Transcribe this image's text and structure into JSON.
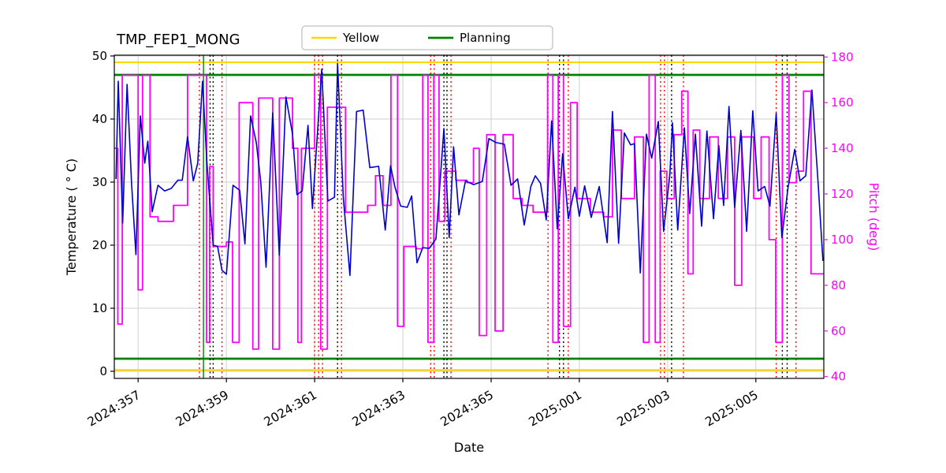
{
  "title": "TMP_FEP1_MONG",
  "legend": {
    "items": [
      {
        "label": "Yellow",
        "color": "#FFD700"
      },
      {
        "label": "Planning",
        "color": "#008000"
      }
    ]
  },
  "chart_data": {
    "type": "line",
    "title": "TMP_FEP1_MONG",
    "xlabel": "Date",
    "ylabel_left": "Temperature ( ° C)",
    "ylabel_right": "Pitch (deg)",
    "x_range": [
      356.46,
      372.54
    ],
    "ylim_left": [
      -1.13,
      50.13
    ],
    "ylim_right": [
      39.2,
      180.8
    ],
    "grid": true,
    "legend_position": "top-center",
    "y_ticks_left": [
      0,
      10,
      20,
      30,
      40,
      50
    ],
    "y_ticks_right": [
      40,
      60,
      80,
      100,
      120,
      140,
      160,
      180
    ],
    "x_ticks": [
      {
        "v": 357,
        "label": "2024:357"
      },
      {
        "v": 359,
        "label": "2024:359"
      },
      {
        "v": 361,
        "label": "2024:361"
      },
      {
        "v": 363,
        "label": "2024:363"
      },
      {
        "v": 365,
        "label": "2024:365"
      },
      {
        "v": 367,
        "label": "2025:001"
      },
      {
        "v": 369,
        "label": "2025:003"
      },
      {
        "v": 371,
        "label": "2025:005"
      }
    ],
    "colors": {
      "temperature": "#0000CC",
      "pitch": "#FF00FF",
      "yellow_limit": "#FFD700",
      "planning_limit": "#008000",
      "event_red": "#FF0000",
      "event_black": "#000000",
      "event_green": "#008000",
      "grid": "#CFCFCF"
    },
    "limit_lines": [
      {
        "name": "yellow-upper-limit",
        "y": 49,
        "color": "#FFD700",
        "width": 2.2
      },
      {
        "name": "yellow-lower-limit",
        "y": 0.2,
        "color": "#FFD700",
        "width": 2.2
      },
      {
        "name": "planning-upper-limit",
        "y": 47,
        "color": "#008000",
        "width": 2.8
      },
      {
        "name": "planning-lower-limit",
        "y": 2,
        "color": "#008000",
        "width": 2.8
      }
    ],
    "event_lines": [
      {
        "x": 358.39,
        "color": "#FF0000",
        "style": "dotted"
      },
      {
        "x": 358.48,
        "color": "#008000",
        "style": "solid"
      },
      {
        "x": 358.63,
        "color": "#000000",
        "style": "dotted"
      },
      {
        "x": 358.7,
        "color": "#000000",
        "style": "dotted"
      },
      {
        "x": 358.9,
        "color": "#FF0000",
        "style": "dotted"
      },
      {
        "x": 361.0,
        "color": "#FF0000",
        "style": "dotted"
      },
      {
        "x": 361.09,
        "color": "#FF0000",
        "style": "dotted"
      },
      {
        "x": 361.18,
        "color": "#FF0000",
        "style": "dotted"
      },
      {
        "x": 361.52,
        "color": "#000000",
        "style": "dotted"
      },
      {
        "x": 361.61,
        "color": "#FF0000",
        "style": "dotted"
      },
      {
        "x": 363.63,
        "color": "#FF0000",
        "style": "dotted"
      },
      {
        "x": 363.71,
        "color": "#FF0000",
        "style": "dotted"
      },
      {
        "x": 363.93,
        "color": "#000000",
        "style": "dotted"
      },
      {
        "x": 364.0,
        "color": "#000000",
        "style": "dotted"
      },
      {
        "x": 364.09,
        "color": "#FF0000",
        "style": "dotted"
      },
      {
        "x": 366.29,
        "color": "#FF0000",
        "style": "dotted"
      },
      {
        "x": 366.55,
        "color": "#000000",
        "style": "dotted"
      },
      {
        "x": 366.64,
        "color": "#000000",
        "style": "dotted"
      },
      {
        "x": 366.75,
        "color": "#FF0000",
        "style": "dotted"
      },
      {
        "x": 368.84,
        "color": "#FF0000",
        "style": "dotted"
      },
      {
        "x": 368.93,
        "color": "#FF0000",
        "style": "dotted"
      },
      {
        "x": 369.09,
        "color": "#000000",
        "style": "dotted"
      },
      {
        "x": 369.36,
        "color": "#FF0000",
        "style": "dotted"
      },
      {
        "x": 371.46,
        "color": "#FF0000",
        "style": "dotted"
      },
      {
        "x": 371.6,
        "color": "#000000",
        "style": "dotted"
      },
      {
        "x": 371.71,
        "color": "#000000",
        "style": "dotted"
      },
      {
        "x": 371.91,
        "color": "#FF0000",
        "style": "dotted"
      }
    ],
    "series": [
      {
        "name": "Pitch",
        "axis": "right",
        "color": "#FF00FF",
        "width": 1.8,
        "step": true,
        "points": [
          [
            356.46,
            140
          ],
          [
            356.54,
            63
          ],
          [
            356.64,
            172
          ],
          [
            357.0,
            78
          ],
          [
            357.1,
            172
          ],
          [
            357.27,
            110
          ],
          [
            357.45,
            108
          ],
          [
            357.8,
            115
          ],
          [
            358.12,
            172
          ],
          [
            358.55,
            55
          ],
          [
            358.62,
            132
          ],
          [
            358.7,
            97
          ],
          [
            359.0,
            99
          ],
          [
            359.14,
            55
          ],
          [
            359.29,
            160
          ],
          [
            359.6,
            52
          ],
          [
            359.73,
            162
          ],
          [
            360.05,
            52
          ],
          [
            360.2,
            162
          ],
          [
            360.5,
            140
          ],
          [
            360.62,
            55
          ],
          [
            360.7,
            140
          ],
          [
            361.0,
            172
          ],
          [
            361.14,
            52
          ],
          [
            361.29,
            158
          ],
          [
            361.7,
            112
          ],
          [
            362.2,
            115
          ],
          [
            362.38,
            128
          ],
          [
            362.55,
            115
          ],
          [
            362.73,
            172
          ],
          [
            362.88,
            62
          ],
          [
            363.02,
            97
          ],
          [
            363.3,
            96
          ],
          [
            363.45,
            172
          ],
          [
            363.57,
            55
          ],
          [
            363.7,
            172
          ],
          [
            363.82,
            108
          ],
          [
            363.95,
            130
          ],
          [
            364.2,
            126
          ],
          [
            364.45,
            125
          ],
          [
            364.6,
            140
          ],
          [
            364.73,
            58
          ],
          [
            364.9,
            146
          ],
          [
            365.09,
            60
          ],
          [
            365.27,
            146
          ],
          [
            365.5,
            118
          ],
          [
            365.7,
            115
          ],
          [
            365.95,
            112
          ],
          [
            366.28,
            172
          ],
          [
            366.4,
            55
          ],
          [
            366.52,
            172
          ],
          [
            366.64,
            62
          ],
          [
            366.8,
            160
          ],
          [
            366.95,
            118
          ],
          [
            367.25,
            112
          ],
          [
            367.55,
            110
          ],
          [
            367.75,
            148
          ],
          [
            367.95,
            118
          ],
          [
            368.25,
            145
          ],
          [
            368.45,
            55
          ],
          [
            368.58,
            172
          ],
          [
            368.72,
            55
          ],
          [
            368.83,
            130
          ],
          [
            368.98,
            118
          ],
          [
            369.15,
            146
          ],
          [
            369.32,
            165
          ],
          [
            369.46,
            85
          ],
          [
            369.58,
            148
          ],
          [
            369.73,
            118
          ],
          [
            369.95,
            145
          ],
          [
            370.15,
            118
          ],
          [
            370.36,
            145
          ],
          [
            370.52,
            80
          ],
          [
            370.68,
            145
          ],
          [
            370.95,
            118
          ],
          [
            371.12,
            145
          ],
          [
            371.3,
            100
          ],
          [
            371.45,
            55
          ],
          [
            371.6,
            172
          ],
          [
            371.75,
            125
          ],
          [
            371.92,
            130
          ],
          [
            372.08,
            165
          ],
          [
            372.25,
            85
          ]
        ]
      },
      {
        "name": "Temperature",
        "axis": "left",
        "color": "#0000CC",
        "width": 1.6,
        "step": false,
        "points": [
          [
            356.5,
            30.5
          ],
          [
            356.55,
            46
          ],
          [
            356.65,
            23.5
          ],
          [
            356.75,
            45.5
          ],
          [
            356.85,
            30
          ],
          [
            356.95,
            18.5
          ],
          [
            357.05,
            40.5
          ],
          [
            357.15,
            33
          ],
          [
            357.22,
            36.5
          ],
          [
            357.32,
            25.3
          ],
          [
            357.45,
            29.5
          ],
          [
            357.6,
            28.6
          ],
          [
            357.75,
            29
          ],
          [
            357.9,
            30.3
          ],
          [
            358.0,
            30.3
          ],
          [
            358.12,
            37.2
          ],
          [
            358.25,
            30.2
          ],
          [
            358.35,
            33
          ],
          [
            358.46,
            46
          ],
          [
            358.56,
            33
          ],
          [
            358.7,
            20
          ],
          [
            358.8,
            19.8
          ],
          [
            358.9,
            16
          ],
          [
            359.0,
            15.4
          ],
          [
            359.15,
            29.5
          ],
          [
            359.3,
            28.7
          ],
          [
            359.42,
            20.2
          ],
          [
            359.55,
            40.5
          ],
          [
            359.68,
            36.2
          ],
          [
            359.78,
            30
          ],
          [
            359.9,
            16.5
          ],
          [
            360.05,
            41
          ],
          [
            360.2,
            18.4
          ],
          [
            360.35,
            43.5
          ],
          [
            360.5,
            37.6
          ],
          [
            360.6,
            28
          ],
          [
            360.72,
            28.6
          ],
          [
            360.85,
            39
          ],
          [
            360.95,
            25.8
          ],
          [
            361.16,
            47.9
          ],
          [
            361.3,
            27
          ],
          [
            361.45,
            27.6
          ],
          [
            361.52,
            48.8
          ],
          [
            361.65,
            27.5
          ],
          [
            361.8,
            15.2
          ],
          [
            361.95,
            41.2
          ],
          [
            362.1,
            41.4
          ],
          [
            362.25,
            32.3
          ],
          [
            362.45,
            32.5
          ],
          [
            362.6,
            22.4
          ],
          [
            362.72,
            32.6
          ],
          [
            362.82,
            29.2
          ],
          [
            362.95,
            26.2
          ],
          [
            363.1,
            26
          ],
          [
            363.2,
            27.8
          ],
          [
            363.32,
            17.2
          ],
          [
            363.45,
            19.6
          ],
          [
            363.6,
            19.5
          ],
          [
            363.75,
            21
          ],
          [
            363.93,
            38.5
          ],
          [
            364.05,
            21.2
          ],
          [
            364.15,
            35.6
          ],
          [
            364.27,
            24.8
          ],
          [
            364.42,
            30.2
          ],
          [
            364.6,
            29.6
          ],
          [
            364.8,
            30.1
          ],
          [
            364.95,
            36.9
          ],
          [
            365.1,
            36.3
          ],
          [
            365.3,
            36
          ],
          [
            365.45,
            29.5
          ],
          [
            365.6,
            30.5
          ],
          [
            365.75,
            23.2
          ],
          [
            365.9,
            29.3
          ],
          [
            366.0,
            31
          ],
          [
            366.12,
            29.8
          ],
          [
            366.25,
            24
          ],
          [
            366.37,
            39.7
          ],
          [
            366.5,
            22.6
          ],
          [
            366.62,
            34.5
          ],
          [
            366.75,
            24.2
          ],
          [
            366.9,
            29.2
          ],
          [
            367.0,
            24.6
          ],
          [
            367.12,
            29.4
          ],
          [
            367.27,
            24.4
          ],
          [
            367.45,
            29.3
          ],
          [
            367.63,
            20.4
          ],
          [
            367.75,
            41.2
          ],
          [
            367.89,
            20.3
          ],
          [
            368.02,
            37.8
          ],
          [
            368.16,
            35.9
          ],
          [
            368.25,
            36.1
          ],
          [
            368.38,
            15.6
          ],
          [
            368.52,
            37.6
          ],
          [
            368.64,
            33.8
          ],
          [
            368.79,
            39.6
          ],
          [
            368.91,
            22.2
          ],
          [
            369.05,
            31.2
          ],
          [
            369.11,
            39.4
          ],
          [
            369.23,
            22.4
          ],
          [
            369.38,
            38.6
          ],
          [
            369.5,
            25
          ],
          [
            369.63,
            37.6
          ],
          [
            369.77,
            23
          ],
          [
            369.89,
            38.1
          ],
          [
            370.04,
            24.2
          ],
          [
            370.16,
            35.8
          ],
          [
            370.27,
            26.3
          ],
          [
            370.39,
            42
          ],
          [
            370.52,
            26
          ],
          [
            370.66,
            38.2
          ],
          [
            370.79,
            22.2
          ],
          [
            370.93,
            41.3
          ],
          [
            371.05,
            28.6
          ],
          [
            371.2,
            29.3
          ],
          [
            371.32,
            26.2
          ],
          [
            371.46,
            40.9
          ],
          [
            371.59,
            21.2
          ],
          [
            371.73,
            29.2
          ],
          [
            371.88,
            35.2
          ],
          [
            372.0,
            30.2
          ],
          [
            372.13,
            31
          ],
          [
            372.27,
            44.6
          ],
          [
            372.41,
            30
          ],
          [
            372.52,
            17.5
          ]
        ]
      }
    ]
  }
}
